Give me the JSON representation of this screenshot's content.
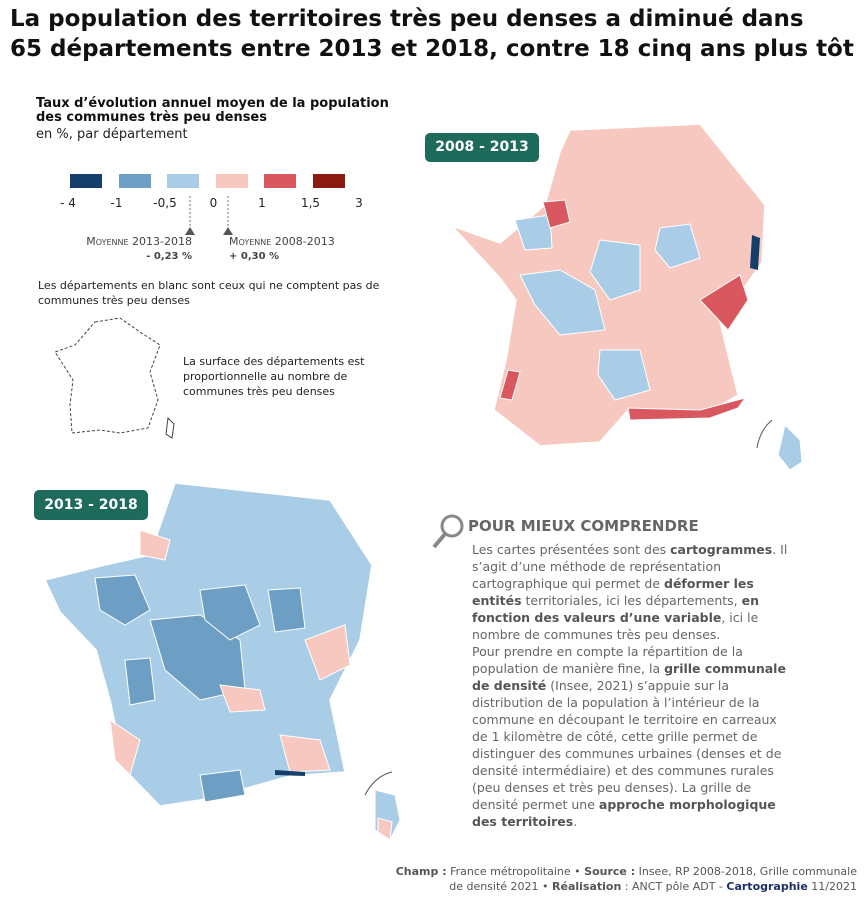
{
  "title": [
    "La population des territoires très peu denses a diminué dans",
    "65 départements entre 2013 et 2018, contre 18 cinq ans plus tôt"
  ],
  "legend": {
    "title": [
      "Taux d’évolution annuel moyen de la population",
      "des communes très peu denses"
    ],
    "subtitle": "en %, par département",
    "colors": [
      "#143f6b",
      "#6d9fc4",
      "#a9cde6",
      "#f7c8c0",
      "#d9585f",
      "#8b1a12"
    ],
    "ticks": [
      "- 4",
      "-1",
      "-0,5",
      "0",
      "1",
      "1,5",
      "3"
    ],
    "markers": [
      {
        "label": "Moyenne 2013-2018",
        "value": "- 0,23 %"
      },
      {
        "label": "Moyenne 2008-2013",
        "value": "+ 0,30 %"
      }
    ]
  },
  "notes": [
    "Les départements en blanc sont ceux qui ne comptent pas de communes très peu denses",
    "La surface des départements est proportionnelle au nombre de communes très peu denses"
  ],
  "maps": [
    {
      "label": "2008 - 2013"
    },
    {
      "label": "2013 - 2018"
    }
  ],
  "box": {
    "title": "POUR MIEUX COMPRENDRE",
    "paragraphs": [
      [
        {
          "t": "Les cartes présentées sont des "
        },
        {
          "t": "cartogrammes",
          "b": true
        },
        {
          "t": ". Il s’agit d’une méthode de représentation cartographique qui permet de "
        },
        {
          "t": "déformer les entités",
          "b": true
        },
        {
          "t": " territoriales, ici les départements, "
        },
        {
          "t": "en fonction des valeurs d’une variable",
          "b": true
        },
        {
          "t": ", ici le nombre de communes très peu denses."
        }
      ],
      [
        {
          "t": "Pour prendre en compte la répartition de la population de manière fine, la "
        },
        {
          "t": "grille communale de densité",
          "b": true
        },
        {
          "t": " (Insee, 2021) s’appuie sur la distribution de la population à l’intérieur de la commune en découpant le territoire en carreaux de 1 kilomètre de côté, cette grille permet de distinguer des communes urbaines (denses et de densité intermédiaire) et des communes rurales (peu denses et très peu denses). La grille de densité permet une "
        },
        {
          "t": "approche morphologique des territoires",
          "b": true
        },
        {
          "t": "."
        }
      ]
    ]
  },
  "footer": [
    {
      "t": "Champ :",
      "b": true
    },
    {
      "t": " France métropolitaine • "
    },
    {
      "t": "Source :",
      "b": true
    },
    {
      "t": " Insee, RP 2008-2018, Grille communale de densité 2021 • "
    },
    {
      "t": "Réalisation",
      "b": true
    },
    {
      "t": " : ANCT pôle ADT - "
    },
    {
      "t": "Cartographie",
      "b": true,
      "accent": true
    },
    {
      "t": " 11/2021"
    }
  ]
}
